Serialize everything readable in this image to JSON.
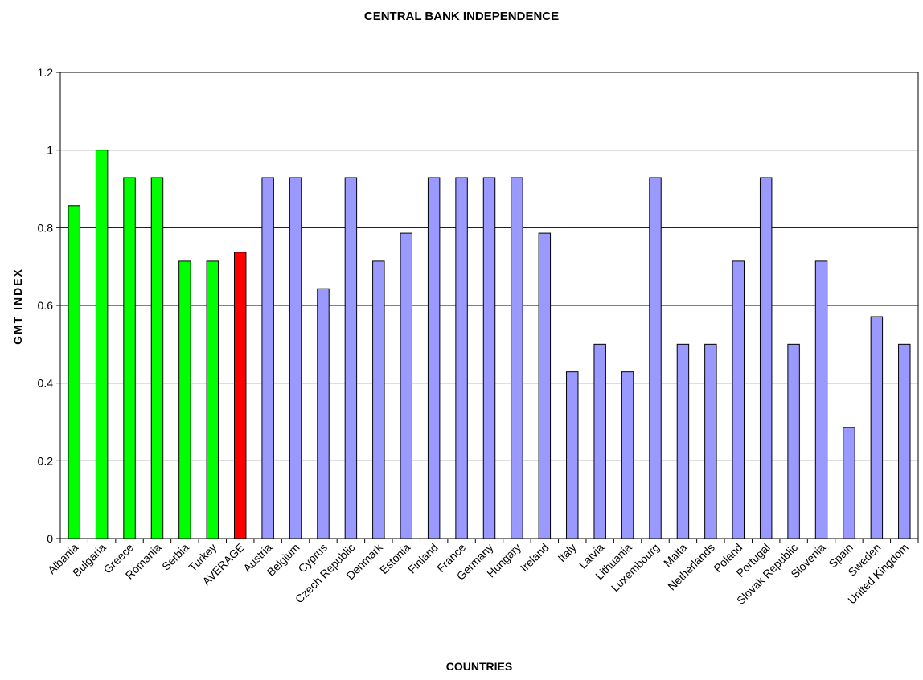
{
  "chart_data": {
    "type": "bar",
    "title": "CENTRAL BANK INDEPENDENCE",
    "xlabel": "COUNTRIES",
    "ylabel": "GMT INDEX",
    "ylim": [
      0,
      1.2
    ],
    "yticks": [
      "0",
      "0.2",
      "0.4",
      "0.6",
      "0.8",
      "1",
      "1.2"
    ],
    "grid": true,
    "categories": [
      "Albania",
      "Bulgaria",
      "Greece",
      "Romania",
      "Serbia",
      "Turkey",
      "AVERAGE",
      "Austria",
      "Belgium",
      "Cyprus",
      "Czech Republic",
      "Denmark",
      "Estonia",
      "Finland",
      "France",
      "Germany",
      "Hungary",
      "Ireland",
      "Italy",
      "Latvia",
      "Lithuania",
      "Luxembourg",
      "Malta",
      "Netherlands",
      "Poland",
      "Portugal",
      "Slovak Republic",
      "Slovenia",
      "Spain",
      "Sweden",
      "United Kingdom"
    ],
    "values": [
      0.857,
      1.0,
      0.929,
      0.929,
      0.714,
      0.714,
      0.737,
      0.929,
      0.929,
      0.643,
      0.929,
      0.714,
      0.786,
      0.929,
      0.929,
      0.929,
      0.929,
      0.786,
      0.429,
      0.5,
      0.429,
      0.929,
      0.5,
      0.5,
      0.714,
      0.929,
      0.5,
      0.714,
      0.286,
      0.571,
      0.5
    ],
    "bar_colors": [
      "#00ff00",
      "#00ff00",
      "#00ff00",
      "#00ff00",
      "#00ff00",
      "#00ff00",
      "#ff0000",
      "#9999ff",
      "#9999ff",
      "#9999ff",
      "#9999ff",
      "#9999ff",
      "#9999ff",
      "#9999ff",
      "#9999ff",
      "#9999ff",
      "#9999ff",
      "#9999ff",
      "#9999ff",
      "#9999ff",
      "#9999ff",
      "#9999ff",
      "#9999ff",
      "#9999ff",
      "#9999ff",
      "#9999ff",
      "#9999ff",
      "#9999ff",
      "#9999ff",
      "#9999ff",
      "#9999ff"
    ]
  }
}
